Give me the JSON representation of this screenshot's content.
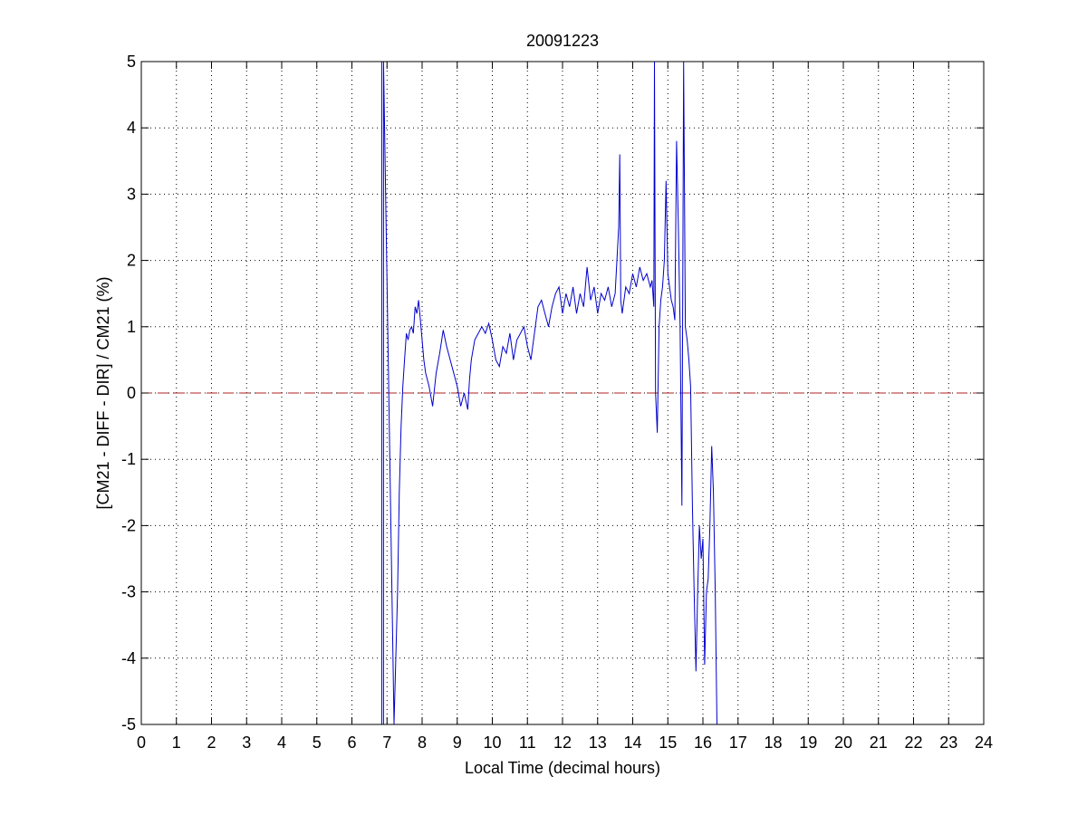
{
  "chart_data": {
    "type": "line",
    "title": "20091223",
    "xlabel": "Local Time (decimal hours)",
    "ylabel": "[CM21 - DIFF - DIR] / CM21 (%)",
    "xlim": [
      0,
      24
    ],
    "ylim": [
      -5,
      5
    ],
    "xticks": [
      "0",
      "1",
      "2",
      "3",
      "4",
      "5",
      "6",
      "7",
      "8",
      "9",
      "10",
      "11",
      "12",
      "13",
      "14",
      "15",
      "16",
      "17",
      "18",
      "19",
      "20",
      "21",
      "22",
      "23",
      "24"
    ],
    "yticks": [
      "5",
      "4",
      "3",
      "2",
      "1",
      "0",
      "-1",
      "-2",
      "-3",
      "-4",
      "-5"
    ],
    "grid": true,
    "reference_line": {
      "y": 0,
      "style": "dashed",
      "color": "#b22222"
    },
    "series": [
      {
        "color": "#0000cc",
        "x": [
          6.85,
          6.85,
          6.9,
          6.9,
          7.2,
          7.3,
          7.35,
          7.4,
          7.45,
          7.5,
          7.55,
          7.6,
          7.65,
          7.7,
          7.75,
          7.8,
          7.85,
          7.9,
          7.95,
          8.0,
          8.05,
          8.1,
          8.2,
          8.3,
          8.4,
          8.5,
          8.6,
          8.7,
          8.8,
          8.9,
          9.0,
          9.1,
          9.2,
          9.3,
          9.35,
          9.4,
          9.5,
          9.6,
          9.7,
          9.8,
          9.9,
          10.0,
          10.1,
          10.2,
          10.3,
          10.4,
          10.5,
          10.6,
          10.7,
          10.8,
          10.9,
          11.0,
          11.1,
          11.2,
          11.3,
          11.4,
          11.5,
          11.6,
          11.7,
          11.8,
          11.9,
          12.0,
          12.1,
          12.2,
          12.3,
          12.4,
          12.5,
          12.6,
          12.7,
          12.8,
          12.9,
          13.0,
          13.1,
          13.2,
          13.3,
          13.4,
          13.5,
          13.6,
          13.63,
          13.66,
          13.7,
          13.8,
          13.9,
          14.0,
          14.1,
          14.2,
          14.3,
          14.4,
          14.5,
          14.55,
          14.6,
          14.62,
          14.65,
          14.7,
          14.75,
          14.8,
          14.85,
          14.9,
          14.95,
          15.0,
          15.05,
          15.1,
          15.15,
          15.2,
          15.25,
          15.3,
          15.35,
          15.4,
          15.45,
          15.5,
          15.55,
          15.6,
          15.65,
          15.7,
          15.75,
          15.8,
          15.85,
          15.9,
          15.95,
          16.0,
          16.05,
          16.1,
          16.15,
          16.2,
          16.25,
          16.3,
          16.35,
          16.4
        ],
        "y": [
          5,
          -5,
          -5,
          5,
          -5,
          -3.0,
          -1.5,
          -0.5,
          0.1,
          0.5,
          0.9,
          0.8,
          0.95,
          1.0,
          0.9,
          1.3,
          1.2,
          1.4,
          1.1,
          0.8,
          0.5,
          0.3,
          0.1,
          -0.2,
          0.3,
          0.6,
          0.95,
          0.7,
          0.5,
          0.3,
          0.1,
          -0.2,
          0.0,
          -0.25,
          0.2,
          0.5,
          0.8,
          0.9,
          1.0,
          0.9,
          1.05,
          0.8,
          0.5,
          0.4,
          0.7,
          0.6,
          0.9,
          0.5,
          0.8,
          0.9,
          1.0,
          0.7,
          0.5,
          0.9,
          1.3,
          1.4,
          1.2,
          1.0,
          1.3,
          1.5,
          1.6,
          1.2,
          1.5,
          1.3,
          1.6,
          1.2,
          1.5,
          1.3,
          1.9,
          1.4,
          1.6,
          1.2,
          1.5,
          1.4,
          1.6,
          1.3,
          1.5,
          2.5,
          3.6,
          1.4,
          1.2,
          1.6,
          1.5,
          1.8,
          1.6,
          1.9,
          1.7,
          1.8,
          1.6,
          1.7,
          1.3,
          5.0,
          0.0,
          -0.6,
          1.0,
          1.4,
          1.6,
          2.0,
          3.2,
          1.8,
          1.6,
          1.4,
          1.3,
          1.1,
          3.8,
          2.5,
          1.0,
          -1.7,
          5.0,
          1.0,
          0.8,
          0.5,
          0.1,
          -1.7,
          -3.0,
          -4.2,
          -3.0,
          -2.0,
          -2.5,
          -2.2,
          -4.1,
          -3.0,
          -2.8,
          -2.0,
          -0.8,
          -1.5,
          -3.0,
          -5.0
        ]
      }
    ]
  }
}
